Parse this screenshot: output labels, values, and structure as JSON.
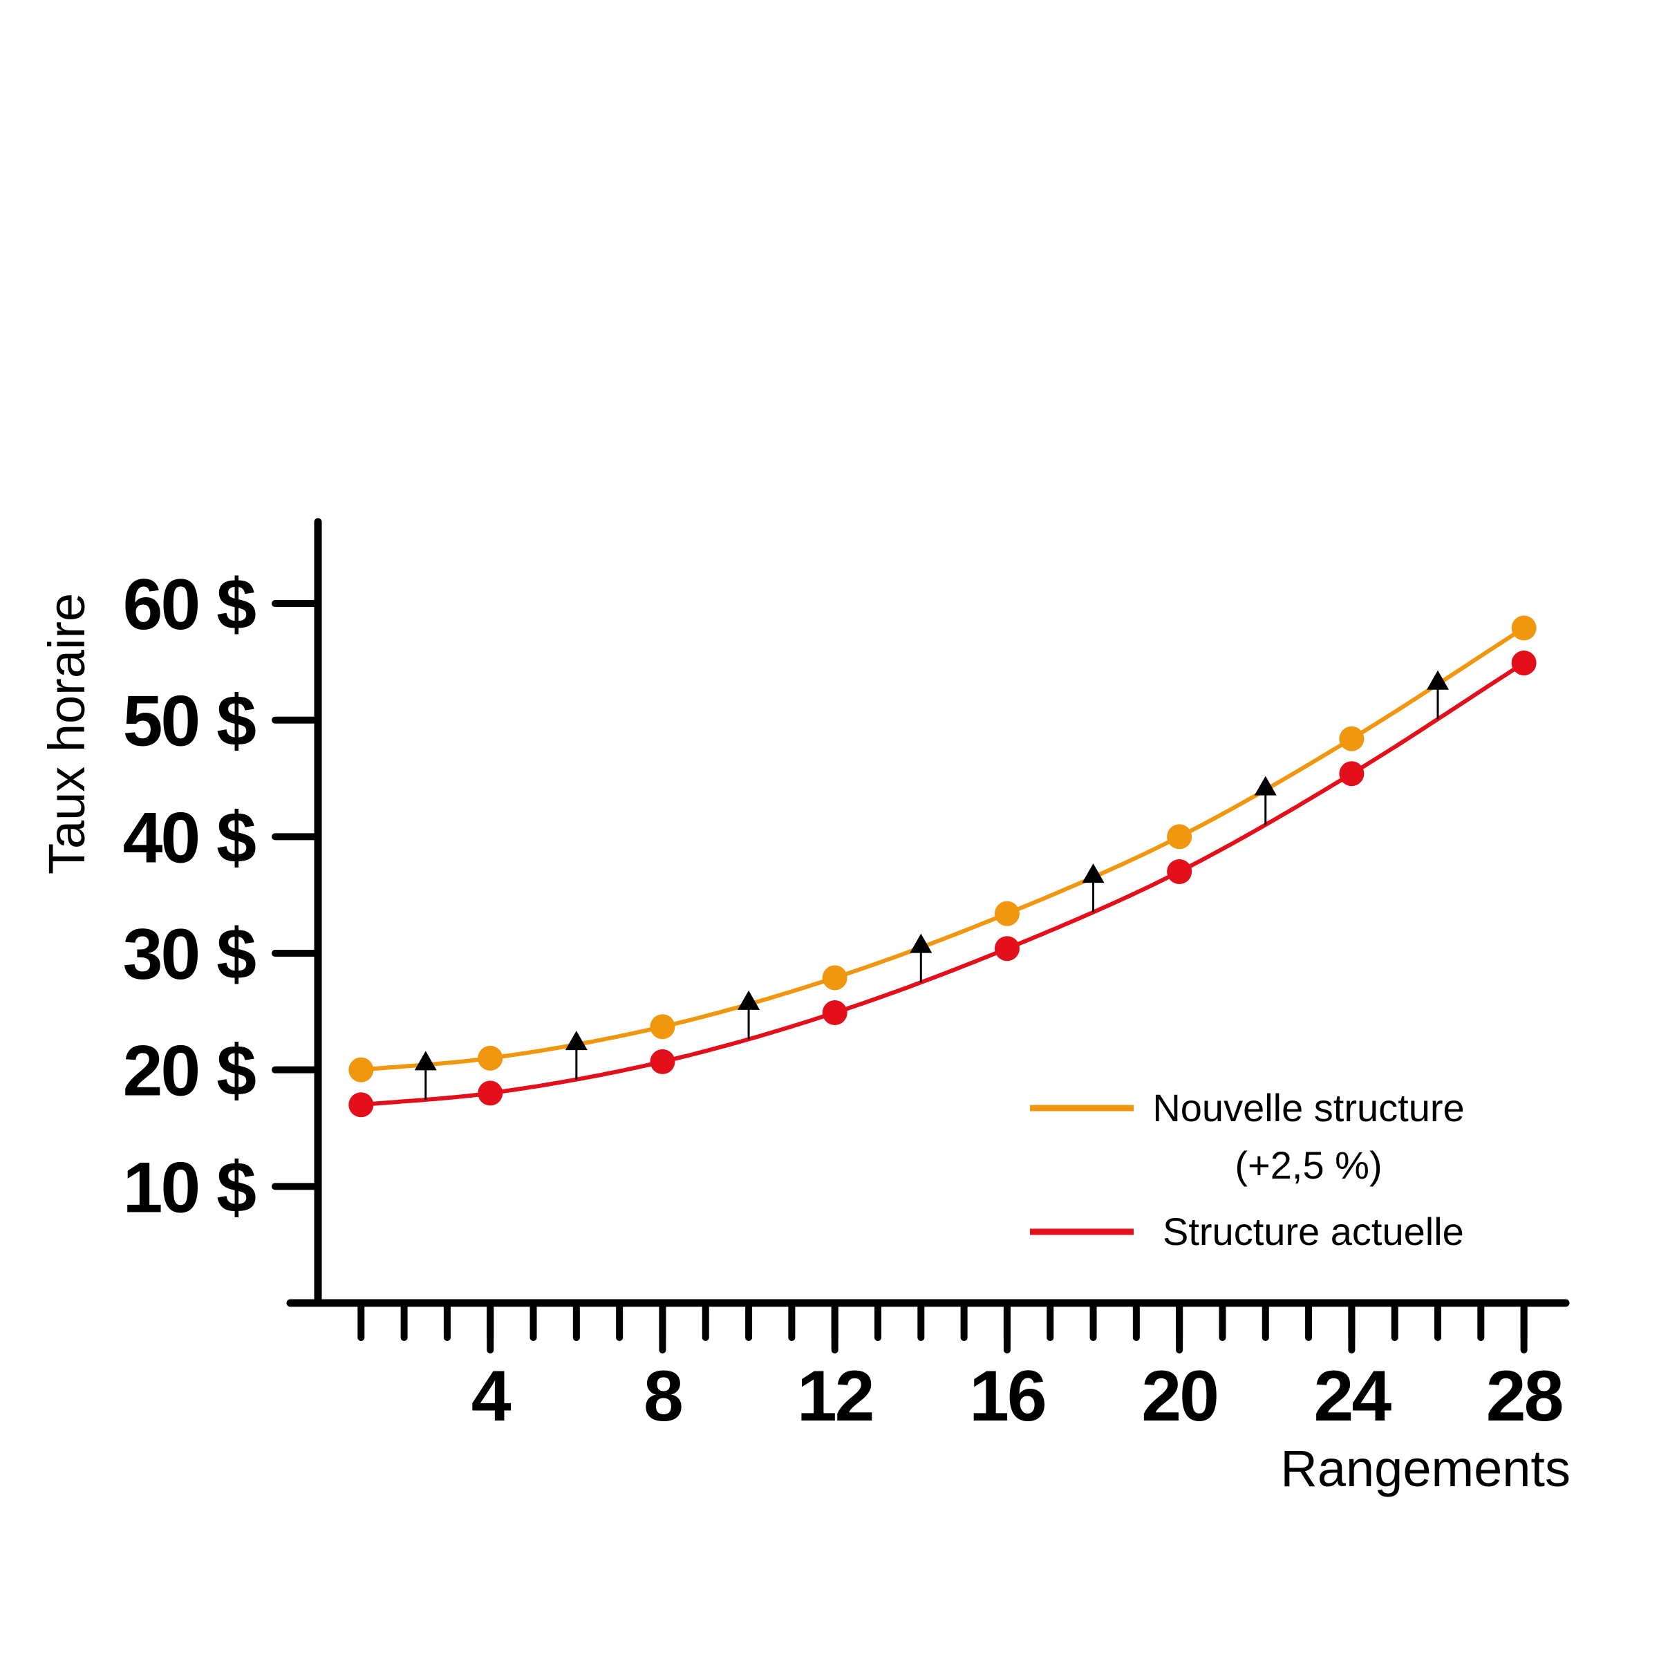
{
  "chart_data": {
    "type": "line",
    "title": "",
    "xlabel": "Rangements",
    "ylabel": "Taux horaire",
    "xlim": [
      0,
      28.6
    ],
    "ylim": [
      0,
      67
    ],
    "x_ticks": [
      4,
      8,
      12,
      16,
      20,
      24,
      28
    ],
    "x_tick_labels": [
      "4",
      "8",
      "12",
      "16",
      "20",
      "24",
      "28"
    ],
    "y_ticks": [
      10,
      20,
      30,
      40,
      50,
      60
    ],
    "y_tick_labels": [
      "10 $",
      "20 $",
      "30 $",
      "40 $",
      "50 $",
      "60 $"
    ],
    "x": [
      1,
      4,
      8,
      12,
      16,
      20,
      24,
      28
    ],
    "series": [
      {
        "name": "Nouvelle structure (+2,5 %)",
        "color": "#f0960f",
        "values": [
          20,
          21,
          23.7,
          27.9,
          33.4,
          40,
          48.4,
          57.9
        ]
      },
      {
        "name": "Structure actuelle",
        "color": "#e30f1b",
        "values": [
          17,
          18,
          20.7,
          24.9,
          30.4,
          37,
          45.4,
          54.9
        ]
      }
    ],
    "increase_arrows_x": [
      2.5,
      6,
      10,
      14,
      18,
      22,
      26
    ],
    "grid": false,
    "legend_position": "bottom-right",
    "legend": [
      {
        "label_lines": [
          "Nouvelle structure",
          "(+2,5 %)"
        ],
        "color": "#f0960f"
      },
      {
        "label_lines": [
          "Structure actuelle"
        ],
        "color": "#e30f1b"
      }
    ]
  }
}
